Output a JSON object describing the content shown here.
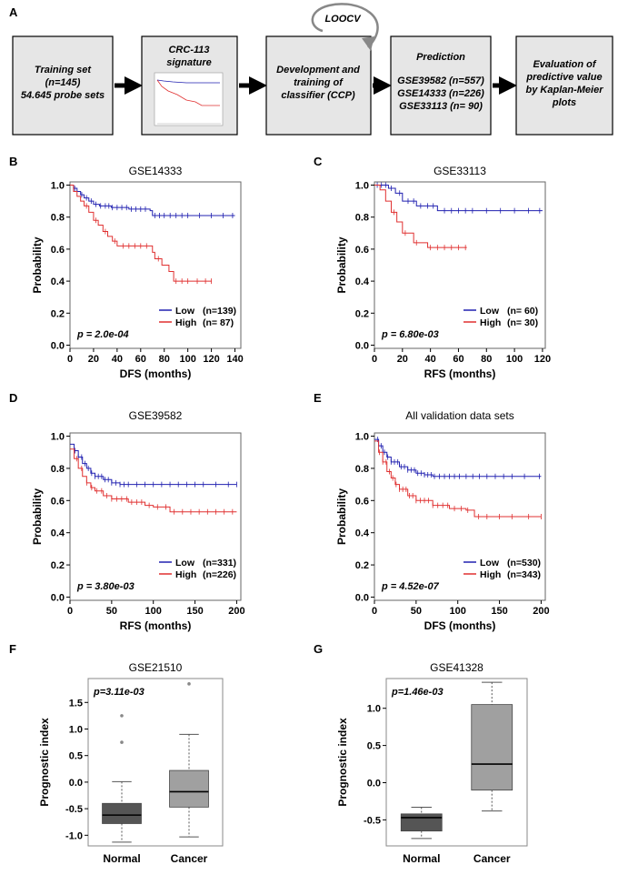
{
  "panel_labels": {
    "A": "A",
    "B": "B",
    "C": "C",
    "D": "D",
    "E": "E",
    "F": "F",
    "G": "G"
  },
  "flow": {
    "box1": [
      "Training set",
      "(n=145)",
      "54.645 probe sets"
    ],
    "box2_title": [
      "CRC-113",
      "signature"
    ],
    "box3": [
      "Development and",
      "training of",
      "classifier (CCP)"
    ],
    "box4_title": "Prediction",
    "box4_items": [
      "GSE39582 (n=557)",
      "GSE14333 (n=226)",
      "GSE33113 (n=  90)"
    ],
    "box5": [
      "Evaluation of",
      "predictive value",
      "by Kaplan-Meier",
      "plots"
    ],
    "loop_label": "LOOCV"
  },
  "colors": {
    "low": "#2020b0",
    "high": "#e03030",
    "box_normal": "#555555",
    "box_cancer": "#a0a0a0"
  },
  "chart_data": [
    {
      "id": "B",
      "type": "line",
      "title": "GSE14333",
      "xlabel": "DFS (months)",
      "ylabel": "Probability",
      "xlim": [
        0,
        145
      ],
      "ylim": [
        -0.02,
        1.02
      ],
      "xticks": [
        0,
        20,
        40,
        60,
        80,
        100,
        120,
        140
      ],
      "yticks": [
        0.0,
        0.2,
        0.4,
        0.6,
        0.8,
        1.0
      ],
      "pvalue": "p = 2.0e-04",
      "series": [
        {
          "name": "Low",
          "n": "(n=139)",
          "color": "low",
          "steps": [
            [
              0,
              1.0
            ],
            [
              3,
              0.98
            ],
            [
              6,
              0.96
            ],
            [
              9,
              0.94
            ],
            [
              12,
              0.92
            ],
            [
              16,
              0.9
            ],
            [
              20,
              0.88
            ],
            [
              25,
              0.87
            ],
            [
              35,
              0.86
            ],
            [
              50,
              0.85
            ],
            [
              68,
              0.84
            ],
            [
              70,
              0.81
            ],
            [
              140,
              0.81
            ]
          ],
          "censors": [
            4,
            10,
            14,
            18,
            22,
            26,
            30,
            33,
            36,
            40,
            44,
            48,
            52,
            56,
            60,
            64,
            72,
            76,
            80,
            85,
            90,
            95,
            100,
            110,
            120,
            130,
            138
          ]
        },
        {
          "name": "High",
          "n": "(n= 87)",
          "color": "high",
          "steps": [
            [
              0,
              1.0
            ],
            [
              3,
              0.96
            ],
            [
              6,
              0.93
            ],
            [
              9,
              0.9
            ],
            [
              12,
              0.87
            ],
            [
              16,
              0.83
            ],
            [
              20,
              0.78
            ],
            [
              24,
              0.75
            ],
            [
              28,
              0.71
            ],
            [
              32,
              0.68
            ],
            [
              36,
              0.65
            ],
            [
              40,
              0.62
            ],
            [
              70,
              0.58
            ],
            [
              72,
              0.54
            ],
            [
              78,
              0.5
            ],
            [
              84,
              0.46
            ],
            [
              88,
              0.4
            ],
            [
              120,
              0.4
            ]
          ],
          "censors": [
            14,
            22,
            30,
            38,
            45,
            50,
            55,
            60,
            65,
            75,
            90,
            95,
            100,
            108,
            115,
            120
          ]
        }
      ]
    },
    {
      "id": "C",
      "type": "line",
      "title": "GSE33113",
      "xlabel": "RFS (months)",
      "ylabel": "Probability",
      "xlim": [
        0,
        122
      ],
      "ylim": [
        -0.02,
        1.02
      ],
      "xticks": [
        0,
        20,
        40,
        60,
        80,
        100,
        120
      ],
      "yticks": [
        0.0,
        0.2,
        0.4,
        0.6,
        0.8,
        1.0
      ],
      "pvalue": "p = 6.80e-03",
      "series": [
        {
          "name": "Low",
          "n": "(n=  60)",
          "color": "low",
          "steps": [
            [
              0,
              1.0
            ],
            [
              10,
              0.98
            ],
            [
              15,
              0.95
            ],
            [
              20,
              0.9
            ],
            [
              30,
              0.87
            ],
            [
              45,
              0.84
            ],
            [
              120,
              0.84
            ]
          ],
          "censors": [
            2,
            5,
            8,
            12,
            18,
            24,
            28,
            33,
            38,
            42,
            50,
            55,
            60,
            65,
            70,
            80,
            90,
            100,
            110,
            118
          ]
        },
        {
          "name": "High",
          "n": "(n=  30)",
          "color": "high",
          "steps": [
            [
              0,
              1.0
            ],
            [
              4,
              0.97
            ],
            [
              8,
              0.9
            ],
            [
              12,
              0.83
            ],
            [
              16,
              0.77
            ],
            [
              20,
              0.7
            ],
            [
              28,
              0.64
            ],
            [
              38,
              0.61
            ],
            [
              66,
              0.61
            ]
          ],
          "censors": [
            14,
            22,
            30,
            40,
            45,
            50,
            55,
            60,
            65
          ]
        }
      ]
    },
    {
      "id": "D",
      "type": "line",
      "title": "GSE39582",
      "xlabel": "RFS (months)",
      "ylabel": "Probability",
      "xlim": [
        0,
        205
      ],
      "ylim": [
        -0.02,
        1.02
      ],
      "xticks": [
        0,
        50,
        100,
        150,
        200
      ],
      "yticks": [
        0.0,
        0.2,
        0.4,
        0.6,
        0.8,
        1.0
      ],
      "pvalue": "p = 3.80e-03",
      "series": [
        {
          "name": "Low",
          "n": "(n=331)",
          "color": "low",
          "steps": [
            [
              0,
              0.95
            ],
            [
              5,
              0.91
            ],
            [
              10,
              0.87
            ],
            [
              15,
              0.83
            ],
            [
              20,
              0.8
            ],
            [
              25,
              0.77
            ],
            [
              30,
              0.75
            ],
            [
              40,
              0.73
            ],
            [
              50,
              0.71
            ],
            [
              60,
              0.7
            ],
            [
              200,
              0.7
            ]
          ],
          "censors": [
            6,
            10,
            14,
            18,
            22,
            26,
            30,
            34,
            38,
            42,
            46,
            50,
            55,
            60,
            65,
            70,
            80,
            90,
            100,
            110,
            120,
            130,
            140,
            150,
            160,
            175,
            190,
            200
          ]
        },
        {
          "name": "High",
          "n": "(n=226)",
          "color": "high",
          "steps": [
            [
              0,
              0.92
            ],
            [
              5,
              0.86
            ],
            [
              10,
              0.8
            ],
            [
              15,
              0.75
            ],
            [
              20,
              0.71
            ],
            [
              25,
              0.68
            ],
            [
              30,
              0.66
            ],
            [
              40,
              0.63
            ],
            [
              50,
              0.61
            ],
            [
              70,
              0.59
            ],
            [
              90,
              0.57
            ],
            [
              100,
              0.56
            ],
            [
              120,
              0.53
            ],
            [
              200,
              0.53
            ]
          ],
          "censors": [
            8,
            14,
            20,
            26,
            32,
            38,
            44,
            50,
            56,
            62,
            68,
            74,
            80,
            86,
            95,
            105,
            115,
            125,
            135,
            145,
            155,
            165,
            175,
            185,
            195
          ]
        }
      ]
    },
    {
      "id": "E",
      "type": "line",
      "title": "All validation data sets",
      "xlabel": "DFS (months)",
      "ylabel": "Probability",
      "xlim": [
        0,
        205
      ],
      "ylim": [
        -0.02,
        1.02
      ],
      "xticks": [
        0,
        50,
        100,
        150,
        200
      ],
      "yticks": [
        0.0,
        0.2,
        0.4,
        0.6,
        0.8,
        1.0
      ],
      "pvalue": "p = 4.52e-07",
      "series": [
        {
          "name": "Low",
          "n": "(n=530)",
          "color": "low",
          "steps": [
            [
              0,
              0.98
            ],
            [
              5,
              0.94
            ],
            [
              10,
              0.9
            ],
            [
              15,
              0.87
            ],
            [
              20,
              0.84
            ],
            [
              30,
              0.81
            ],
            [
              40,
              0.79
            ],
            [
              50,
              0.77
            ],
            [
              60,
              0.76
            ],
            [
              70,
              0.75
            ],
            [
              200,
              0.75
            ]
          ],
          "censors": [
            4,
            8,
            12,
            16,
            20,
            24,
            28,
            32,
            36,
            40,
            44,
            48,
            52,
            56,
            60,
            64,
            68,
            72,
            78,
            84,
            90,
            96,
            102,
            110,
            118,
            126,
            135,
            145,
            155,
            165,
            180,
            198
          ]
        },
        {
          "name": "High",
          "n": "(n=343)",
          "color": "high",
          "steps": [
            [
              0,
              0.97
            ],
            [
              5,
              0.9
            ],
            [
              10,
              0.84
            ],
            [
              15,
              0.78
            ],
            [
              20,
              0.74
            ],
            [
              25,
              0.7
            ],
            [
              30,
              0.67
            ],
            [
              40,
              0.63
            ],
            [
              50,
              0.6
            ],
            [
              70,
              0.57
            ],
            [
              90,
              0.55
            ],
            [
              110,
              0.54
            ],
            [
              120,
              0.5
            ],
            [
              200,
              0.5
            ]
          ],
          "censors": [
            6,
            10,
            14,
            18,
            22,
            26,
            30,
            34,
            38,
            42,
            46,
            50,
            55,
            60,
            65,
            70,
            76,
            82,
            88,
            96,
            104,
            112,
            125,
            135,
            150,
            165,
            185,
            200
          ]
        }
      ]
    },
    {
      "id": "F",
      "type": "box",
      "title": "GSE21510",
      "xlabel": "",
      "ylabel": "Prognostic index",
      "ylim": [
        -1.2,
        1.95
      ],
      "yticks": [
        -1.0,
        -0.5,
        0.0,
        0.5,
        1.0,
        1.5
      ],
      "ytick_labels": [
        "-1.0",
        "-0.5",
        "0.0",
        "0.5",
        "1.0",
        "1.5"
      ],
      "pvalue": "p=3.11e-03",
      "groups": [
        {
          "name": "Normal",
          "color": "box_normal",
          "min": -1.13,
          "q1": -0.78,
          "median": -0.62,
          "q3": -0.4,
          "max": 0.01,
          "outliers": [
            0.75,
            1.25
          ]
        },
        {
          "name": "Cancer",
          "color": "box_cancer",
          "min": -1.03,
          "q1": -0.47,
          "median": -0.18,
          "q3": 0.22,
          "max": 0.9,
          "outliers": [
            1.85
          ]
        }
      ]
    },
    {
      "id": "G",
      "type": "box",
      "title": "GSE41328",
      "xlabel": "",
      "ylabel": "Prognostic index",
      "ylim": [
        -0.85,
        1.4
      ],
      "yticks": [
        -0.5,
        0.0,
        0.5,
        1.0
      ],
      "ytick_labels": [
        "-0.5",
        "0.0",
        "0.5",
        "1.0"
      ],
      "pvalue": "p=1.46e-03",
      "groups": [
        {
          "name": "Normal",
          "color": "box_normal",
          "min": -0.75,
          "q1": -0.65,
          "median": -0.47,
          "q3": -0.42,
          "max": -0.33,
          "outliers": []
        },
        {
          "name": "Cancer",
          "color": "box_cancer",
          "min": -0.38,
          "q1": -0.1,
          "median": 0.25,
          "q3": 1.05,
          "max": 1.35,
          "outliers": []
        }
      ]
    }
  ]
}
